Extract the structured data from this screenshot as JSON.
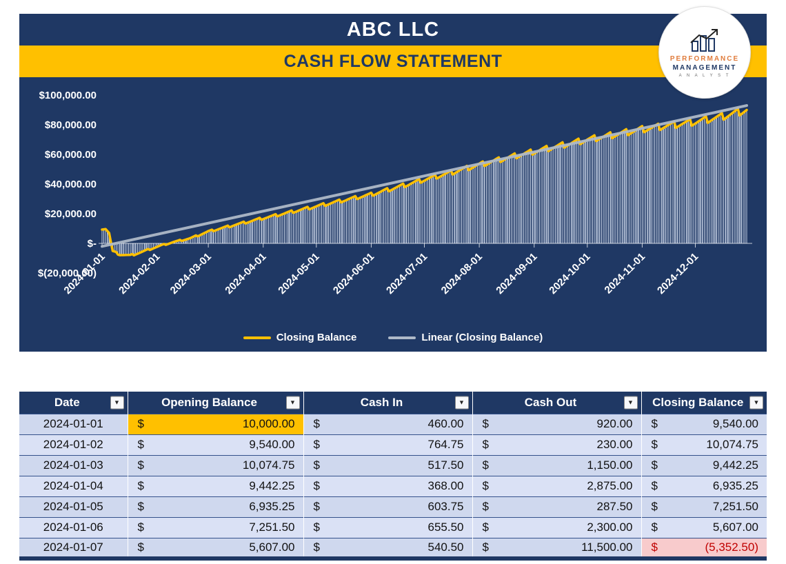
{
  "header": {
    "company": "ABC LLC",
    "title": "CASH FLOW STATEMENT"
  },
  "logo": {
    "line1": "PERFORMANCE",
    "line2": "MANAGEMENT",
    "line3": "A N A L Y S T"
  },
  "chart_data": {
    "type": "bar",
    "title": "",
    "xlabel": "",
    "ylabel": "",
    "days": 365,
    "ylim": [
      -20000,
      100000
    ],
    "grid": false,
    "legend_position": "bottom",
    "background": "#1F3864",
    "bar_color": "rgba(228,236,250,0.85)",
    "y_axis": [
      {
        "label": "$100,000.00",
        "value": 100000
      },
      {
        "label": "$80,000.00",
        "value": 80000
      },
      {
        "label": "$60,000.00",
        "value": 60000
      },
      {
        "label": "$40,000.00",
        "value": 40000
      },
      {
        "label": "$20,000.00",
        "value": 20000
      },
      {
        "label": "$-",
        "value": 0
      },
      {
        "label": "$(20,000.00)",
        "value": -20000
      }
    ],
    "x_ticks": [
      {
        "label": "2024-01-01",
        "day": 0
      },
      {
        "label": "2024-02-01",
        "day": 31
      },
      {
        "label": "2024-03-01",
        "day": 60
      },
      {
        "label": "2024-04-01",
        "day": 91
      },
      {
        "label": "2024-05-01",
        "day": 121
      },
      {
        "label": "2024-06-01",
        "day": 152
      },
      {
        "label": "2024-07-01",
        "day": 182
      },
      {
        "label": "2024-08-01",
        "day": 213
      },
      {
        "label": "2024-09-01",
        "day": 244
      },
      {
        "label": "2024-10-01",
        "day": 274
      },
      {
        "label": "2024-11-01",
        "day": 305
      },
      {
        "label": "2024-12-01",
        "day": 335
      }
    ],
    "anchors": [
      [
        0,
        10000
      ],
      [
        2,
        10000
      ],
      [
        4,
        7000
      ],
      [
        6,
        -5350
      ],
      [
        10,
        -7500
      ],
      [
        16,
        -8200
      ],
      [
        22,
        -6000
      ],
      [
        28,
        -3500
      ],
      [
        34,
        -1200
      ],
      [
        40,
        800
      ],
      [
        50,
        3500
      ],
      [
        60,
        8000
      ],
      [
        75,
        12500
      ],
      [
        91,
        17000
      ],
      [
        106,
        21000
      ],
      [
        121,
        25000
      ],
      [
        136,
        29000
      ],
      [
        152,
        33000
      ],
      [
        167,
        38000
      ],
      [
        182,
        43000
      ],
      [
        198,
        48000
      ],
      [
        213,
        53000
      ],
      [
        228,
        57500
      ],
      [
        244,
        62000
      ],
      [
        259,
        66000
      ],
      [
        274,
        70000
      ],
      [
        290,
        73500
      ],
      [
        305,
        77000
      ],
      [
        320,
        79500
      ],
      [
        335,
        82000
      ],
      [
        350,
        85500
      ],
      [
        364,
        90000
      ]
    ],
    "sawtooth": {
      "period": 9,
      "base_amplitude": 900,
      "scale": 0.045,
      "max_amplitude": 5000
    },
    "trend": {
      "start": -2000,
      "end": 93000
    },
    "legend": [
      {
        "label": "Closing Balance",
        "color": "#FFC000"
      },
      {
        "label": "Linear (Closing Balance)",
        "color": "#AEB9C8"
      }
    ]
  },
  "table": {
    "currency": "$",
    "columns": [
      {
        "label": "Date"
      },
      {
        "label": "Opening Balance"
      },
      {
        "label": "Cash In"
      },
      {
        "label": "Cash Out"
      },
      {
        "label": "Closing Balance"
      }
    ],
    "rows": [
      {
        "date": "2024-01-01",
        "opening": "10,000.00",
        "cash_in": "460.00",
        "cash_out": "920.00",
        "closing": "9,540.00",
        "opening_highlight": true,
        "closing_negative": false
      },
      {
        "date": "2024-01-02",
        "opening": "9,540.00",
        "cash_in": "764.75",
        "cash_out": "230.00",
        "closing": "10,074.75",
        "opening_highlight": false,
        "closing_negative": false
      },
      {
        "date": "2024-01-03",
        "opening": "10,074.75",
        "cash_in": "517.50",
        "cash_out": "1,150.00",
        "closing": "9,442.25",
        "opening_highlight": false,
        "closing_negative": false
      },
      {
        "date": "2024-01-04",
        "opening": "9,442.25",
        "cash_in": "368.00",
        "cash_out": "2,875.00",
        "closing": "6,935.25",
        "opening_highlight": false,
        "closing_negative": false
      },
      {
        "date": "2024-01-05",
        "opening": "6,935.25",
        "cash_in": "603.75",
        "cash_out": "287.50",
        "closing": "7,251.50",
        "opening_highlight": false,
        "closing_negative": false
      },
      {
        "date": "2024-01-06",
        "opening": "7,251.50",
        "cash_in": "655.50",
        "cash_out": "2,300.00",
        "closing": "5,607.00",
        "opening_highlight": false,
        "closing_negative": false
      },
      {
        "date": "2024-01-07",
        "opening": "5,607.00",
        "cash_in": "540.50",
        "cash_out": "11,500.00",
        "closing": "(5,352.50)",
        "opening_highlight": false,
        "closing_negative": true
      }
    ]
  }
}
